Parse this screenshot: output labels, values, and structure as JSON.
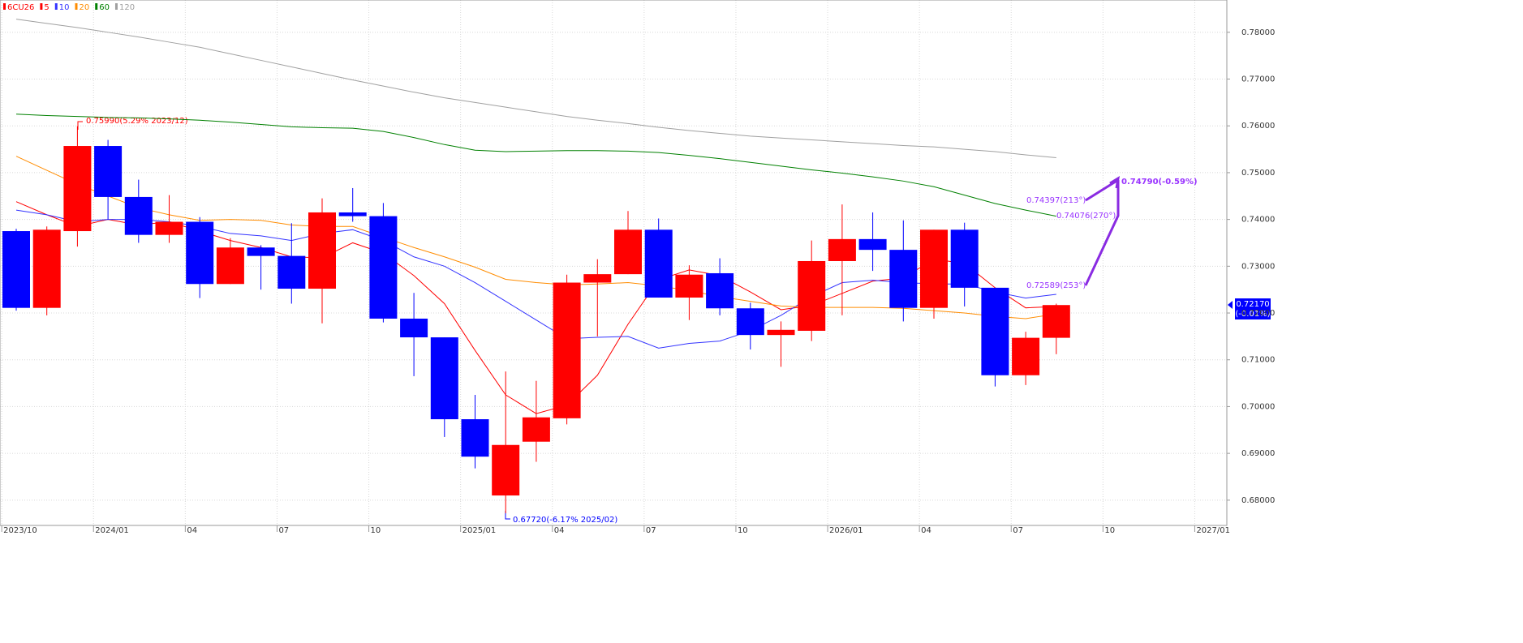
{
  "chart_data": {
    "type": "candlestick",
    "symbol": "6CU26",
    "categories": [
      "2023/10",
      null,
      null,
      "2024/01",
      null,
      null,
      "04",
      null,
      null,
      "07",
      null,
      null,
      "10",
      null,
      null,
      "2025/01",
      null,
      null,
      "04",
      null,
      null,
      "07",
      null,
      null,
      "10",
      null,
      null,
      "2026/01",
      null,
      null,
      "04",
      null,
      null,
      "07",
      null,
      null,
      "10",
      null,
      null,
      "2027/01"
    ],
    "open": [
      0.7375,
      0.7211,
      0.7375,
      0.7557,
      0.7448,
      0.7367,
      0.7395,
      0.7262,
      0.734,
      0.7322,
      0.7252,
      0.7415,
      0.7407,
      0.7188,
      0.7148,
      0.6973,
      0.681,
      0.6925,
      0.6975,
      0.7265,
      0.7283,
      0.7378,
      0.7233,
      0.7285,
      0.721,
      0.7153,
      0.7162,
      0.7311,
      0.7358,
      0.7335,
      0.7211,
      0.7378,
      0.7254,
      0.7067,
      0.7147,
      null,
      null,
      null,
      null,
      null
    ],
    "high": [
      0.738,
      0.7385,
      0.7599,
      0.757,
      0.7485,
      0.7452,
      0.7405,
      0.736,
      0.7345,
      0.7392,
      0.7445,
      0.7467,
      0.7435,
      0.7243,
      0.7148,
      0.7025,
      0.7075,
      0.7055,
      0.7282,
      0.7315,
      0.7418,
      0.7402,
      0.7302,
      0.7317,
      0.7222,
      0.7182,
      0.7355,
      0.7432,
      0.7415,
      0.7398,
      0.7378,
      0.7393,
      0.7254,
      0.716,
      0.722,
      null,
      null,
      null,
      null,
      null
    ],
    "low": [
      0.7205,
      0.7195,
      0.7342,
      0.74,
      0.735,
      0.735,
      0.7232,
      0.7262,
      0.725,
      0.722,
      0.7178,
      0.7395,
      0.718,
      0.7065,
      0.6935,
      0.6868,
      0.6772,
      0.6882,
      0.6962,
      0.715,
      0.7283,
      0.7233,
      0.7185,
      0.7195,
      0.7122,
      0.7085,
      0.714,
      0.7195,
      0.729,
      0.7182,
      0.7188,
      0.7214,
      0.7043,
      0.7046,
      0.7112,
      null,
      null,
      null,
      null,
      null
    ],
    "close": [
      0.7211,
      0.7378,
      0.7557,
      0.7448,
      0.7367,
      0.7395,
      0.7262,
      0.734,
      0.7322,
      0.7252,
      0.7415,
      0.7407,
      0.7188,
      0.7148,
      0.6973,
      0.6893,
      0.6918,
      0.6977,
      0.7265,
      0.7283,
      0.7378,
      0.7233,
      0.7282,
      0.721,
      0.7153,
      0.7164,
      0.7311,
      0.7358,
      0.7335,
      0.7211,
      0.7378,
      0.7254,
      0.7067,
      0.7147,
      0.7217,
      null,
      null,
      null,
      null,
      null
    ],
    "up_color": "#ff0000",
    "down_color": "#0000ff",
    "series": [
      {
        "name": "5",
        "color": "#ff0000",
        "values": [
          0.7438,
          0.741,
          0.7385,
          0.74,
          0.7388,
          0.7395,
          0.7375,
          0.7355,
          0.734,
          0.732,
          0.7318,
          0.735,
          0.7328,
          0.728,
          0.722,
          0.712,
          0.7025,
          0.6985,
          0.7003,
          0.7067,
          0.7176,
          0.7271,
          0.7292,
          0.728,
          0.7245,
          0.7207,
          0.7216,
          0.7242,
          0.7268,
          0.7275,
          0.7315,
          0.7306,
          0.7254,
          0.7211,
          0.7214,
          null,
          null,
          null,
          null,
          null
        ]
      },
      {
        "name": "10",
        "color": "#3333ff",
        "values": [
          0.742,
          0.741,
          0.7395,
          0.74,
          0.74,
          0.7395,
          0.7385,
          0.737,
          0.7365,
          0.7355,
          0.737,
          0.7378,
          0.7355,
          0.732,
          0.73,
          0.7265,
          0.7225,
          0.7185,
          0.7145,
          0.7148,
          0.715,
          0.7125,
          0.7135,
          0.714,
          0.7162,
          0.7195,
          0.7235,
          0.7265,
          0.727,
          0.7265,
          0.7262,
          0.7262,
          0.7245,
          0.7232,
          0.724,
          null,
          null,
          null,
          null,
          null
        ]
      },
      {
        "name": "20",
        "color": "#ff8c00",
        "values": [
          0.7535,
          0.7505,
          0.7475,
          0.745,
          0.7425,
          0.741,
          0.7398,
          0.74,
          0.7398,
          0.7388,
          0.7385,
          0.7385,
          0.7362,
          0.734,
          0.732,
          0.7298,
          0.7272,
          0.7265,
          0.726,
          0.7262,
          0.7265,
          0.7258,
          0.7248,
          0.7235,
          0.7225,
          0.7215,
          0.7212,
          0.7212,
          0.7212,
          0.721,
          0.7205,
          0.72,
          0.7193,
          0.7188,
          0.7198,
          null,
          null,
          null,
          null,
          null
        ]
      },
      {
        "name": "60",
        "color": "#008000",
        "values": [
          0.7625,
          0.7622,
          0.762,
          0.7618,
          0.7617,
          0.7615,
          0.7612,
          0.7608,
          0.7603,
          0.7598,
          0.7596,
          0.7595,
          0.7588,
          0.7575,
          0.756,
          0.7548,
          0.7545,
          0.7546,
          0.7547,
          0.7547,
          0.7546,
          0.7543,
          0.7537,
          0.753,
          0.7522,
          0.7514,
          0.7506,
          0.7499,
          0.7491,
          0.7482,
          0.747,
          0.7452,
          0.7434,
          0.742,
          0.7407,
          null,
          null,
          null,
          null,
          null
        ]
      },
      {
        "name": "120",
        "color": "#a0a0a0",
        "values": [
          0.7828,
          0.7819,
          0.781,
          0.78,
          0.779,
          0.7779,
          0.7768,
          0.7754,
          0.774,
          0.7726,
          0.7712,
          0.7698,
          0.7685,
          0.7672,
          0.766,
          0.765,
          0.764,
          0.763,
          0.762,
          0.7612,
          0.7605,
          0.7597,
          0.759,
          0.7584,
          0.7578,
          0.7574,
          0.757,
          0.7566,
          0.7562,
          0.7558,
          0.7555,
          0.755,
          0.7545,
          0.7538,
          0.7532,
          null,
          null,
          null,
          null,
          null
        ]
      }
    ],
    "ylim": [
      0.6746,
      0.7869
    ],
    "yticks": [
      {
        "value": 0.68,
        "label": "0.68000"
      },
      {
        "value": 0.69,
        "label": "0.69000"
      },
      {
        "value": 0.7,
        "label": "0.70000"
      },
      {
        "value": 0.71,
        "label": "0.71000"
      },
      {
        "value": 0.72,
        "label": "0.72000"
      },
      {
        "value": 0.73,
        "label": "0.73000"
      },
      {
        "value": 0.74,
        "label": "0.74000"
      },
      {
        "value": 0.75,
        "label": "0.75000"
      },
      {
        "value": 0.76,
        "label": "0.76000"
      },
      {
        "value": 0.77,
        "label": "0.77000"
      },
      {
        "value": 0.78,
        "label": "0.78000"
      }
    ],
    "grid": true,
    "last_price": {
      "value": 0.7217,
      "label": "0.72170",
      "change": "(-0.01%)"
    },
    "annotations": [
      "0.75990(5.29% 2023/12)",
      "0.67720(-6.17% 2025/02)",
      "0.74397(213°)",
      "0.74076(270°)",
      "0.72589(253°)",
      "0.74790(-0.59%)"
    ]
  }
}
